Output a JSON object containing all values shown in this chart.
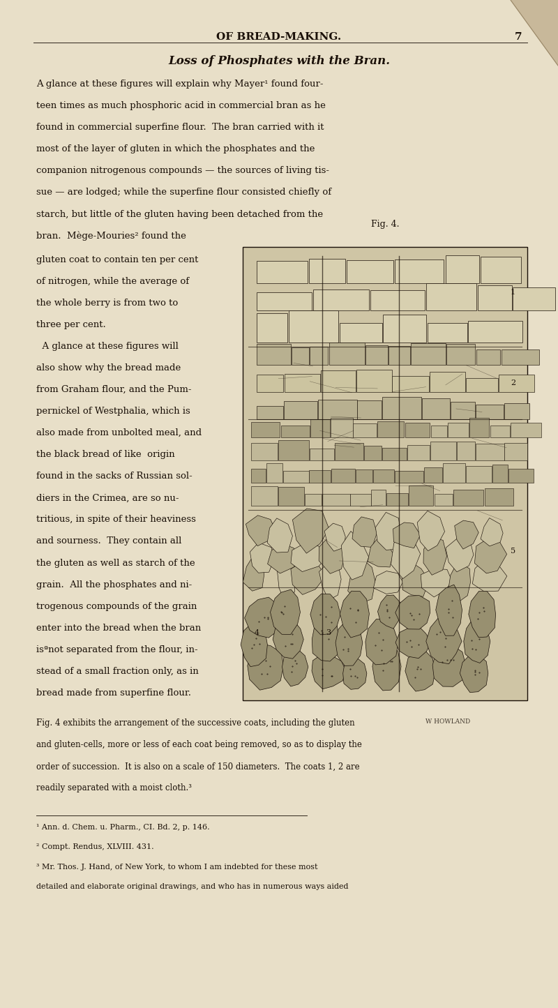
{
  "bg_color": "#e8dfc8",
  "page_width": 8.0,
  "page_height": 14.45,
  "header_text": "OF BREAD-MAKING.",
  "header_page_num": "7",
  "section_title": "Loss of Phosphates with the Bran.",
  "main_text_full": [
    "A glance at these figures will explain why Mayer¹ found four-",
    "teen times as much phosphoric acid in commercial bran as he",
    "found in commercial superfine flour.  The bran carried with it",
    "most of the layer of gluten in which the phosphates and the",
    "companion nitrogenous compounds — the sources of living tis-",
    "sue — are lodged; while the superfine flour consisted chiefly of",
    "starch, but little of the gluten having been detached from the",
    "bran.  Mège-Mouries² found the"
  ],
  "left_col_lines": [
    "gluten coat to contain ten per cent",
    "of nitrogen, while the average of",
    "the whole berry is from two to",
    "three per cent.",
    "  A glance at these figures will",
    "also show why the bread made",
    "from Graham flour, and the Pum-",
    "pernickel of Westphalia, which is",
    "also made from unbolted meal, and",
    "the black bread of like  origin",
    "found in the sacks of Russian sol-",
    "diers in the Crimea, are so nu-",
    "tritious, in spite of their heaviness",
    "and sourness.  They contain all",
    "the gluten as well as starch of the",
    "grain.  All the phosphates and ni-",
    "trogenous compounds of the grain",
    "enter into the bread when the bran",
    "isªnot separated from the flour, in-",
    "stead of a small fraction only, as in",
    "bread made from superfine flour."
  ],
  "caption_text": [
    "Fig. 4 exhibits the arrangement of the successive coats, including the gluten",
    "and gluten-cells, more or less of each coat being removed, so as to display the",
    "order of succession.  It is also on a scale of 150 diameters.  The coats 1, 2 are",
    "readily separated with a moist cloth.³"
  ],
  "footnote_lines": [
    "¹ Ann. d. Chem. u. Pharm., CI. Bd. 2, p. 146.",
    "² Compt. Rendus, XLVIII. 431.",
    "³ Mr. Thos. J. Hand, of New York, to whom I am indebted for these most",
    "detailed and elaborate original drawings, and who has in numerous ways aided"
  ],
  "fig_label": "Fig. 4.",
  "watermark": "W HOWLAND",
  "text_color": "#1a1008",
  "fold_color": "#c8b89a"
}
